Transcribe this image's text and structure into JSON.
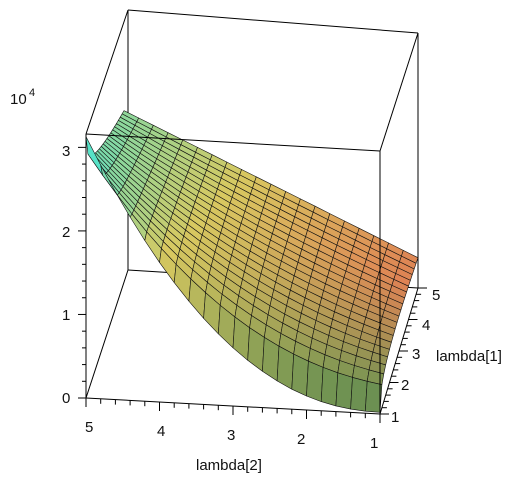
{
  "chart_data": {
    "type": "surface3d",
    "exponent_label": "10",
    "exponent_power": "4",
    "x_axis": {
      "label": "lambda[2]",
      "ticks": [
        "5",
        "4",
        "3",
        "2",
        "1"
      ],
      "range": [
        1,
        5
      ]
    },
    "y_axis": {
      "label": "lambda[1]",
      "ticks": [
        "1",
        "2",
        "3",
        "4",
        "5"
      ],
      "range": [
        1,
        5
      ]
    },
    "z_axis": {
      "ticks": [
        "0",
        "1",
        "2",
        "3"
      ],
      "range_units_1e4": [
        0,
        3.15
      ]
    },
    "surface_corners_1e4": {
      "lambda2_5_lambda1_1": 3.15,
      "lambda2_5_lambda1_5": 2.4,
      "lambda2_1_lambda1_5": 0.82,
      "lambda2_1_lambda1_1": 0.02
    },
    "grid": 21,
    "colors": {
      "high": "#38e8e0",
      "mid": "#d8c860",
      "low_right": "#e44a4a",
      "low_left": "#5c8c50"
    }
  }
}
